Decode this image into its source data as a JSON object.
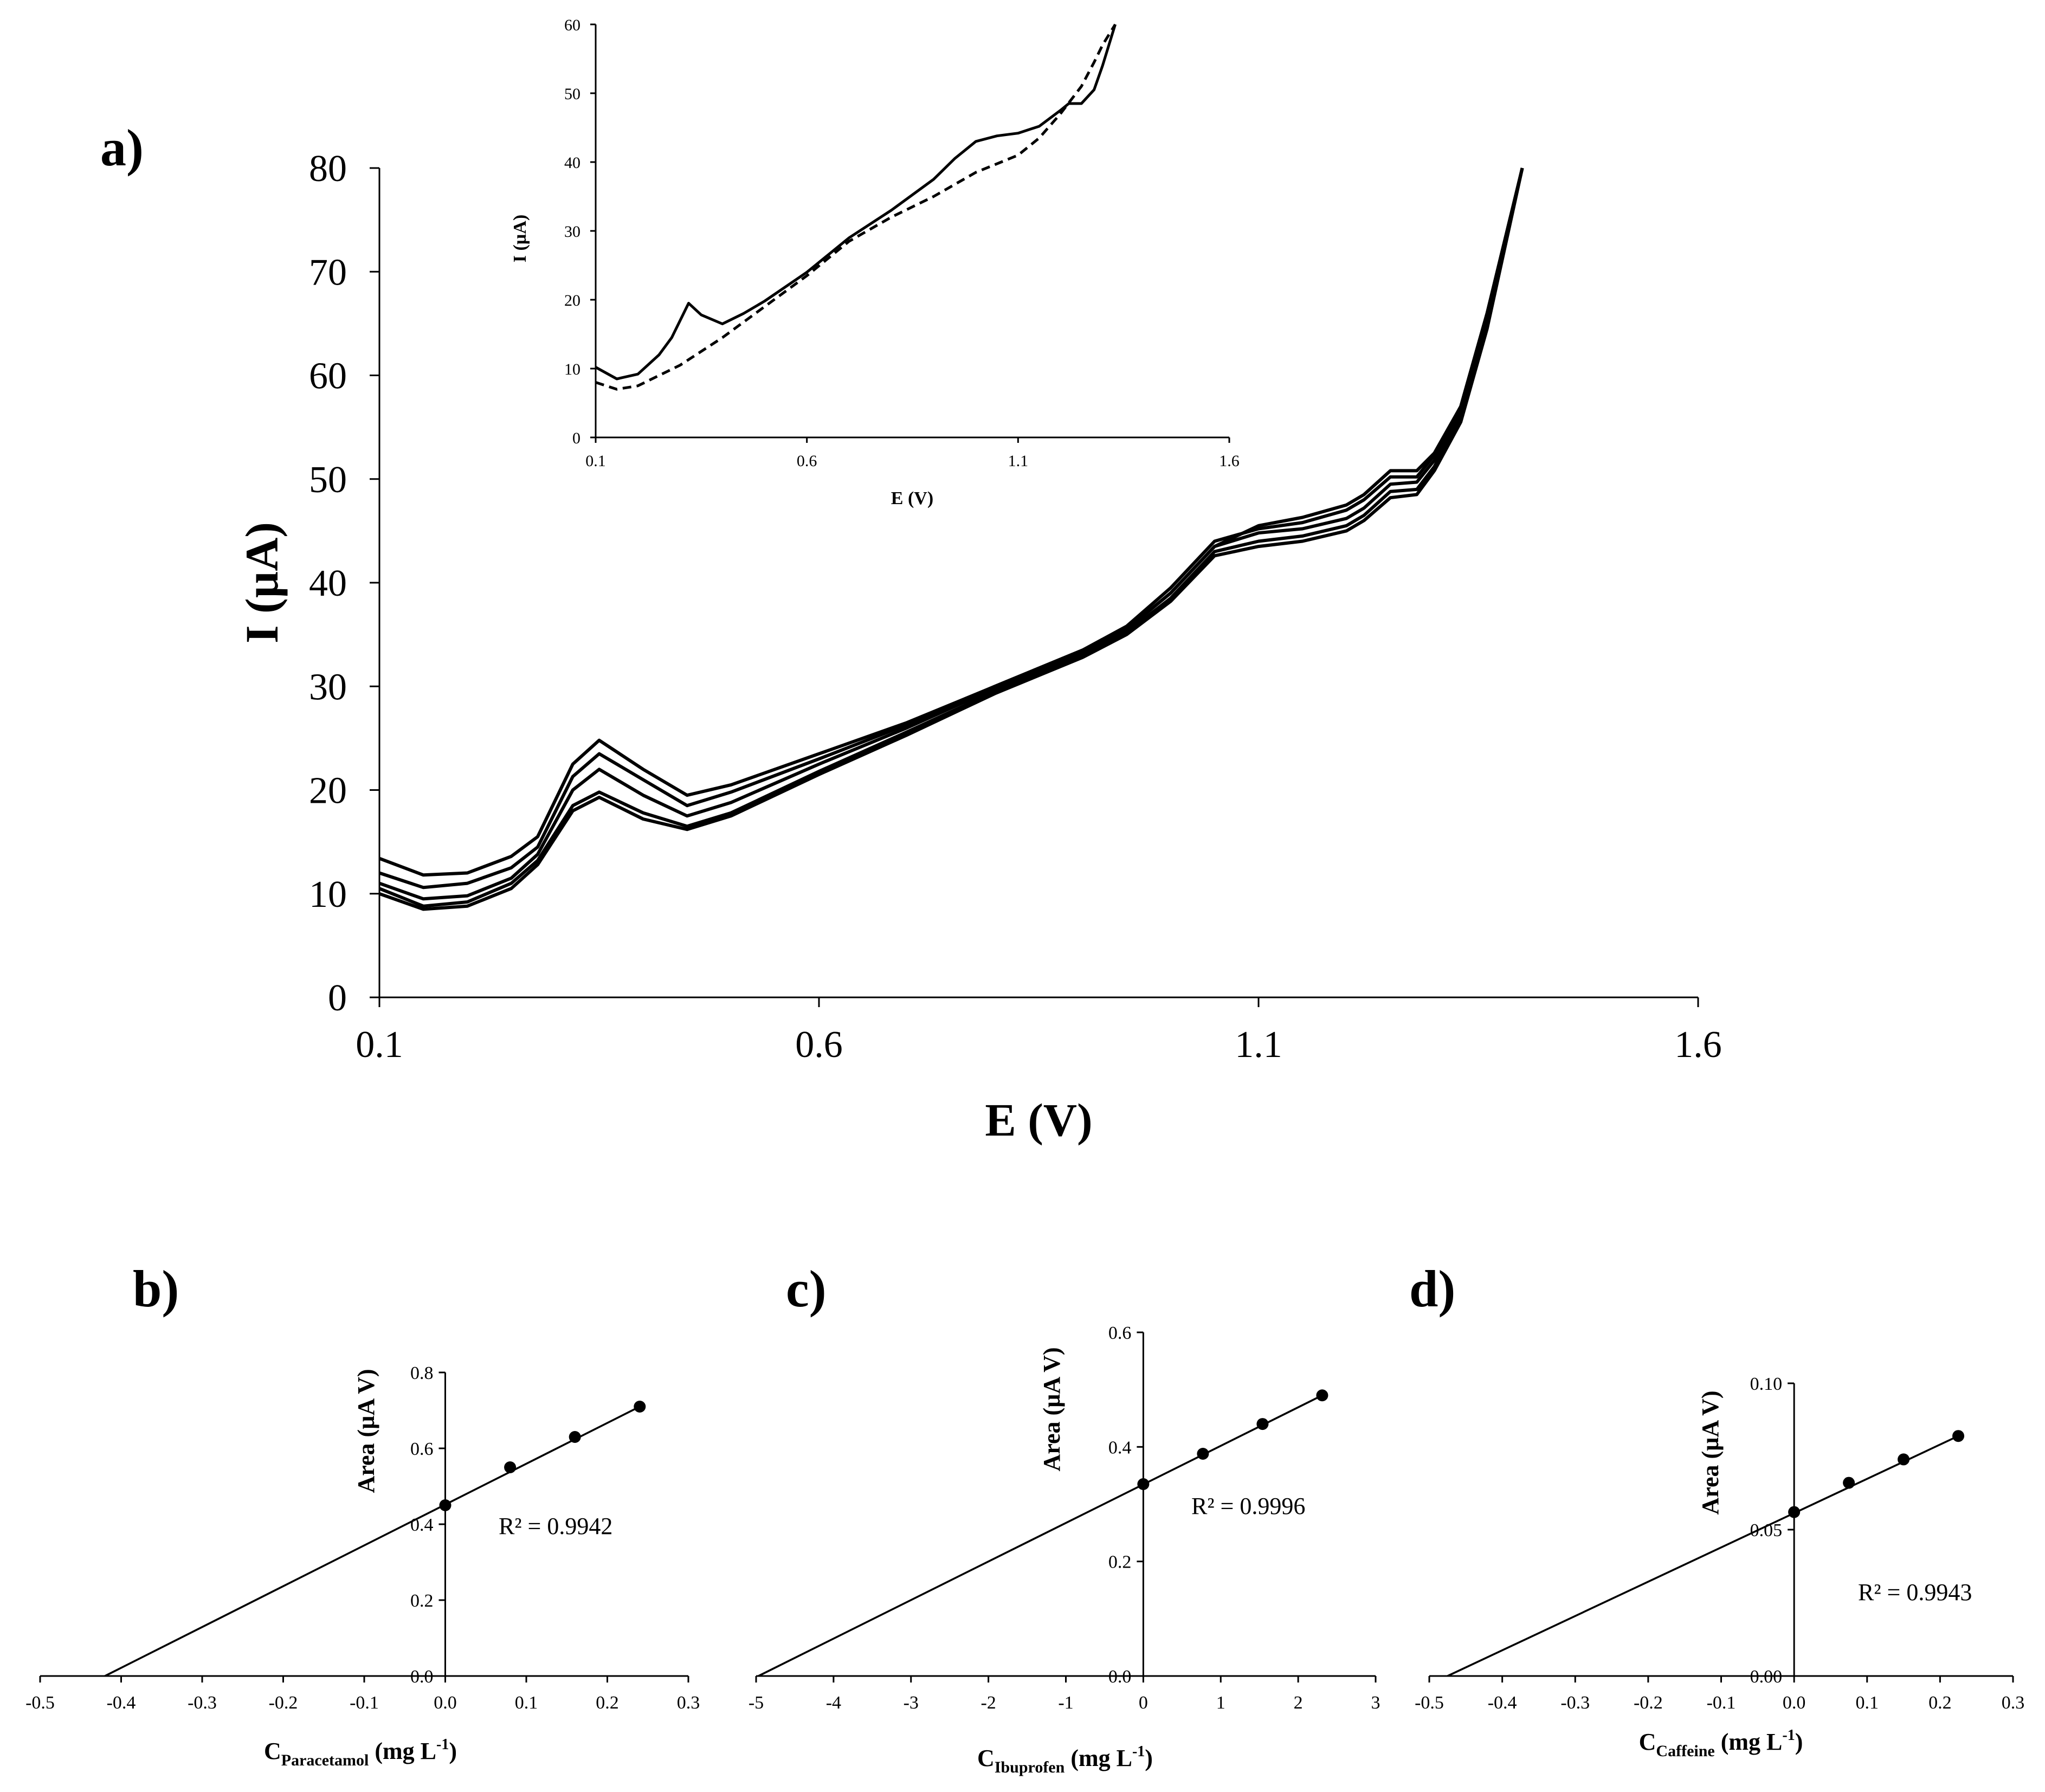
{
  "chart_data": [
    {
      "id": "a",
      "panel_label": "a)",
      "type": "line",
      "xlabel": "E (V)",
      "ylabel": "I (µA)",
      "xlim": [
        0.1,
        1.6
      ],
      "ylim": [
        0,
        80
      ],
      "xticks": [
        0.1,
        0.6,
        1.1,
        1.6
      ],
      "yticks": [
        0,
        10,
        20,
        30,
        40,
        50,
        60,
        70,
        80
      ],
      "series": [
        {
          "x": [
            0.1,
            0.15,
            0.2,
            0.25,
            0.28,
            0.32,
            0.35,
            0.4,
            0.45,
            0.5,
            0.6,
            0.7,
            0.8,
            0.9,
            0.95,
            1.0,
            1.05,
            1.1,
            1.15,
            1.2,
            1.22,
            1.25,
            1.28,
            1.3,
            1.33,
            1.36,
            1.4
          ],
          "y": [
            13.4,
            11.8,
            12.0,
            13.6,
            15.5,
            22.5,
            24.8,
            22.0,
            19.5,
            20.5,
            23.5,
            26.5,
            30.0,
            33.5,
            35.5,
            39.0,
            43.5,
            45.5,
            46.3,
            47.5,
            48.5,
            50.8,
            50.8,
            52.5,
            57.0,
            66.0,
            80.0
          ]
        },
        {
          "x": [
            0.1,
            0.15,
            0.2,
            0.25,
            0.28,
            0.32,
            0.35,
            0.4,
            0.45,
            0.5,
            0.6,
            0.7,
            0.8,
            0.9,
            0.95,
            1.0,
            1.05,
            1.1,
            1.15,
            1.2,
            1.22,
            1.25,
            1.28,
            1.3,
            1.33,
            1.36,
            1.4
          ],
          "y": [
            12.0,
            10.6,
            11.0,
            12.5,
            14.5,
            21.3,
            23.5,
            21.0,
            18.5,
            19.8,
            23.0,
            26.3,
            30.0,
            33.5,
            35.8,
            39.5,
            44.0,
            45.2,
            45.8,
            47.0,
            48.0,
            50.2,
            50.2,
            52.3,
            57.0,
            66.0,
            80.0
          ]
        },
        {
          "x": [
            0.1,
            0.15,
            0.2,
            0.25,
            0.28,
            0.32,
            0.35,
            0.4,
            0.45,
            0.5,
            0.6,
            0.7,
            0.8,
            0.9,
            0.95,
            1.0,
            1.05,
            1.1,
            1.15,
            1.2,
            1.22,
            1.25,
            1.28,
            1.3,
            1.33,
            1.36,
            1.4
          ],
          "y": [
            11.0,
            9.5,
            9.8,
            11.5,
            13.8,
            20.0,
            22.0,
            19.5,
            17.5,
            18.8,
            22.5,
            26.0,
            29.8,
            33.3,
            35.5,
            39.0,
            43.5,
            44.8,
            45.2,
            46.2,
            47.2,
            49.5,
            49.7,
            51.8,
            56.5,
            65.5,
            80.0
          ]
        },
        {
          "x": [
            0.1,
            0.15,
            0.2,
            0.25,
            0.28,
            0.32,
            0.35,
            0.4,
            0.45,
            0.5,
            0.6,
            0.7,
            0.8,
            0.9,
            0.95,
            1.0,
            1.05,
            1.1,
            1.15,
            1.2,
            1.22,
            1.25,
            1.28,
            1.3,
            1.33,
            1.36,
            1.4
          ],
          "y": [
            10.5,
            8.8,
            9.2,
            11.0,
            13.2,
            18.5,
            19.8,
            17.8,
            16.5,
            17.8,
            21.8,
            25.6,
            29.5,
            33.0,
            35.2,
            38.5,
            43.0,
            44.0,
            44.5,
            45.5,
            46.5,
            48.8,
            49.0,
            51.2,
            56.0,
            65.0,
            80.0
          ]
        },
        {
          "x": [
            0.1,
            0.15,
            0.2,
            0.25,
            0.28,
            0.32,
            0.35,
            0.4,
            0.45,
            0.5,
            0.6,
            0.7,
            0.8,
            0.9,
            0.95,
            1.0,
            1.05,
            1.1,
            1.15,
            1.2,
            1.22,
            1.25,
            1.28,
            1.3,
            1.33,
            1.36,
            1.4
          ],
          "y": [
            10.0,
            8.5,
            8.8,
            10.5,
            12.8,
            18.0,
            19.3,
            17.2,
            16.2,
            17.5,
            21.5,
            25.3,
            29.3,
            32.8,
            35.0,
            38.2,
            42.6,
            43.5,
            44.0,
            45.0,
            46.0,
            48.2,
            48.5,
            50.8,
            55.5,
            64.5,
            80.0
          ]
        }
      ]
    },
    {
      "id": "inset",
      "type": "line",
      "xlabel": "E (V)",
      "ylabel": "I (µA)",
      "xlim": [
        0.1,
        1.6
      ],
      "ylim": [
        0,
        60
      ],
      "xticks": [
        0.1,
        0.6,
        1.1,
        1.6
      ],
      "yticks": [
        0,
        10,
        20,
        30,
        40,
        50,
        60
      ],
      "series": [
        {
          "style": "solid",
          "x": [
            0.1,
            0.15,
            0.2,
            0.25,
            0.28,
            0.32,
            0.35,
            0.4,
            0.45,
            0.5,
            0.6,
            0.7,
            0.8,
            0.9,
            0.95,
            1.0,
            1.05,
            1.1,
            1.15,
            1.2,
            1.22,
            1.25,
            1.28,
            1.3,
            1.32,
            1.33
          ],
          "y": [
            10.2,
            8.5,
            9.2,
            12.0,
            14.5,
            19.5,
            17.8,
            16.5,
            18.0,
            19.8,
            24.0,
            29.0,
            33.0,
            37.5,
            40.5,
            43.0,
            43.8,
            44.2,
            45.2,
            47.5,
            48.5,
            48.5,
            50.5,
            54.0,
            58.0,
            60.0
          ]
        },
        {
          "style": "dashed",
          "x": [
            0.1,
            0.15,
            0.2,
            0.3,
            0.4,
            0.5,
            0.6,
            0.7,
            0.8,
            0.9,
            1.0,
            1.1,
            1.15,
            1.2,
            1.25,
            1.28,
            1.3,
            1.33
          ],
          "y": [
            8.0,
            7.0,
            7.5,
            10.5,
            14.5,
            19.0,
            23.5,
            28.5,
            32.0,
            35.0,
            38.5,
            41.0,
            43.5,
            47.0,
            51.0,
            54.5,
            57.0,
            60.0
          ]
        }
      ]
    },
    {
      "id": "b",
      "panel_label": "b)",
      "type": "scatter",
      "xlabel_main": "C",
      "xlabel_sub": "Paracetamol",
      "xlabel_unit": " (mg L",
      "xlabel_exp": "-1",
      "xlabel_close": ")",
      "ylabel": "Area (µA V)",
      "xlim": [
        -0.5,
        0.3
      ],
      "ylim": [
        0,
        0.8
      ],
      "xticks": [
        -0.5,
        -0.4,
        -0.3,
        -0.2,
        -0.1,
        0,
        0.1,
        0.2,
        0.3
      ],
      "xtick_labels": [
        "-0.5",
        "-0.4",
        "-0.3",
        "-0.2",
        "-0.1",
        "0.0",
        "0.1",
        "0.2",
        "0.3"
      ],
      "yticks": [
        0,
        0.2,
        0.4,
        0.6,
        0.8
      ],
      "ytick_labels": [
        "0.0",
        "0.2",
        "0.4",
        "0.6",
        "0.8"
      ],
      "points": [
        {
          "x": 0,
          "y": 0.45
        },
        {
          "x": 0.08,
          "y": 0.55
        },
        {
          "x": 0.16,
          "y": 0.63
        },
        {
          "x": 0.24,
          "y": 0.71
        }
      ],
      "fit_line": {
        "x": [
          -0.42,
          0.24
        ],
        "y": [
          0.0,
          0.71
        ]
      },
      "r2_text": "R² = 0.9942"
    },
    {
      "id": "c",
      "panel_label": "c)",
      "type": "scatter",
      "xlabel_main": "C",
      "xlabel_sub": "Ibuprofen",
      "xlabel_unit": " (mg L",
      "xlabel_exp": "-1",
      "xlabel_close": ")",
      "ylabel": "Area (µA V)",
      "xlim": [
        -5,
        3
      ],
      "ylim": [
        0,
        0.6
      ],
      "xticks": [
        -5,
        -4,
        -3,
        -2,
        -1,
        0,
        1,
        2,
        3
      ],
      "xtick_labels": [
        "-5",
        "-4",
        "-3",
        "-2",
        "-1",
        "0",
        "1",
        "2",
        "3"
      ],
      "yticks": [
        0,
        0.2,
        0.4,
        0.6
      ],
      "ytick_labels": [
        "0.0",
        "0.2",
        "0.4",
        "0.6"
      ],
      "points": [
        {
          "x": 0,
          "y": 0.335
        },
        {
          "x": 0.77,
          "y": 0.388
        },
        {
          "x": 1.54,
          "y": 0.44
        },
        {
          "x": 2.31,
          "y": 0.49
        }
      ],
      "fit_line": {
        "x": [
          -4.97,
          2.31
        ],
        "y": [
          0.0,
          0.49
        ]
      },
      "r2_text": "R² = 0.9996"
    },
    {
      "id": "d",
      "panel_label": "d)",
      "type": "scatter",
      "xlabel_main": "C",
      "xlabel_sub": "Caffeine",
      "xlabel_unit": " (mg L",
      "xlabel_exp": "-1",
      "xlabel_close": ")",
      "ylabel": "Area (µA V)",
      "xlim": [
        -0.5,
        0.3
      ],
      "ylim": [
        0,
        0.1
      ],
      "xticks": [
        -0.5,
        -0.4,
        -0.3,
        -0.2,
        -0.1,
        0,
        0.1,
        0.2,
        0.3
      ],
      "xtick_labels": [
        "-0.5",
        "-0.4",
        "-0.3",
        "-0.2",
        "-0.1",
        "0.0",
        "0.1",
        "0.2",
        "0.3"
      ],
      "yticks": [
        0,
        0.05,
        0.1
      ],
      "ytick_labels": [
        "0.00",
        "0.05",
        "0.10"
      ],
      "points": [
        {
          "x": 0,
          "y": 0.056
        },
        {
          "x": 0.075,
          "y": 0.066
        },
        {
          "x": 0.15,
          "y": 0.074
        },
        {
          "x": 0.225,
          "y": 0.082
        }
      ],
      "fit_line": {
        "x": [
          -0.475,
          0.225
        ],
        "y": [
          0.0,
          0.082
        ]
      },
      "r2_text": "R² = 0.9943"
    }
  ]
}
